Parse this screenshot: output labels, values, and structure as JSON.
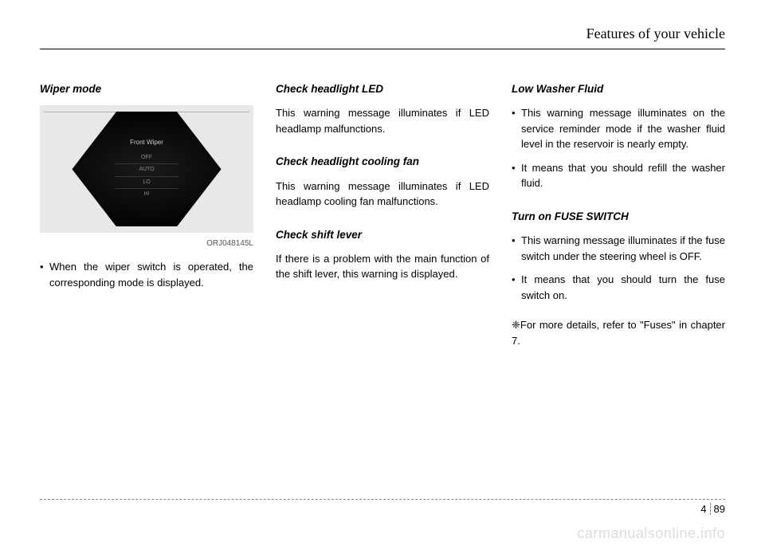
{
  "header": {
    "title": "Features of your vehicle"
  },
  "col1": {
    "title": "Wiper mode",
    "figure": {
      "label": "Front Wiper",
      "modes": [
        "OFF",
        "AUTO",
        "LO",
        "HI"
      ],
      "code": "ORJ048145L",
      "bg": "#e8e8e8",
      "cluster_bg": "#000000",
      "text_color": "#cccccc",
      "mode_color": "#888888"
    },
    "bullet1": "When the wiper switch is operated, the corresponding mode is dis­played."
  },
  "col2": {
    "sec1_title": "Check headlight LED",
    "sec1_text": "This warning message illuminates if LED headlamp malfunctions.",
    "sec2_title": "Check headlight cooling fan",
    "sec2_text": "This warning message illuminates if LED headlamp cooling fan malfunc­tions.",
    "sec3_title": "Check shift lever",
    "sec3_text": "If there is a problem with the main function of the shift lever, this warn­ing is displayed."
  },
  "col3": {
    "sec1_title": "Low Washer Fluid",
    "sec1_b1": "This warning message illuminates on the service reminder mode if the washer fluid level in the reser­voir is nearly empty.",
    "sec1_b2": "It means that you should refill the washer fluid.",
    "sec2_title": "Turn on FUSE SWITCH",
    "sec2_b1": "This warning message illuminates if the fuse switch under the steer­ing wheel is OFF.",
    "sec2_b2": "It means that you should turn the fuse switch on.",
    "footnote": "❈For more details, refer to \"Fuses\" in chapter 7."
  },
  "footer": {
    "section": "4",
    "page": "89"
  },
  "watermark": "carmanualsonline.info"
}
